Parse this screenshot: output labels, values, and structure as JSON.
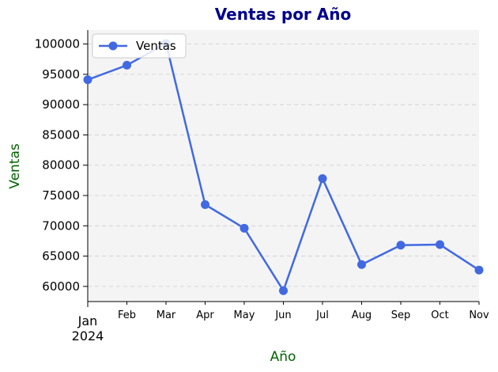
{
  "chart_data": {
    "type": "line",
    "title": "Ventas por Año",
    "xlabel": "Año",
    "ylabel": "Ventas",
    "x": [
      "2024-01",
      "2024-02",
      "2024-03",
      "2024-04",
      "2024-05",
      "2024-06",
      "2024-07",
      "2024-08",
      "2024-09",
      "2024-10",
      "2024-11"
    ],
    "x_tick_labels": [
      "Jan",
      "Feb",
      "Mar",
      "Apr",
      "May",
      "Jun",
      "Jul",
      "Aug",
      "Sep",
      "Oct",
      "Nov"
    ],
    "x_year_label": "2024",
    "series": [
      {
        "name": "Ventas",
        "values": [
          94100,
          96500,
          100100,
          73500,
          69600,
          59300,
          77800,
          63600,
          66800,
          66900,
          62700
        ]
      }
    ],
    "yticks": [
      60000,
      65000,
      70000,
      75000,
      80000,
      85000,
      90000,
      95000,
      100000
    ],
    "ylim": [
      57500,
      102300
    ],
    "grid": "y-dashed",
    "legend": "top-left",
    "colors": {
      "line": "#4169e1",
      "title": "#00008b",
      "axis_labels": "#006400",
      "plot_bg": "#f4f4f4"
    }
  }
}
